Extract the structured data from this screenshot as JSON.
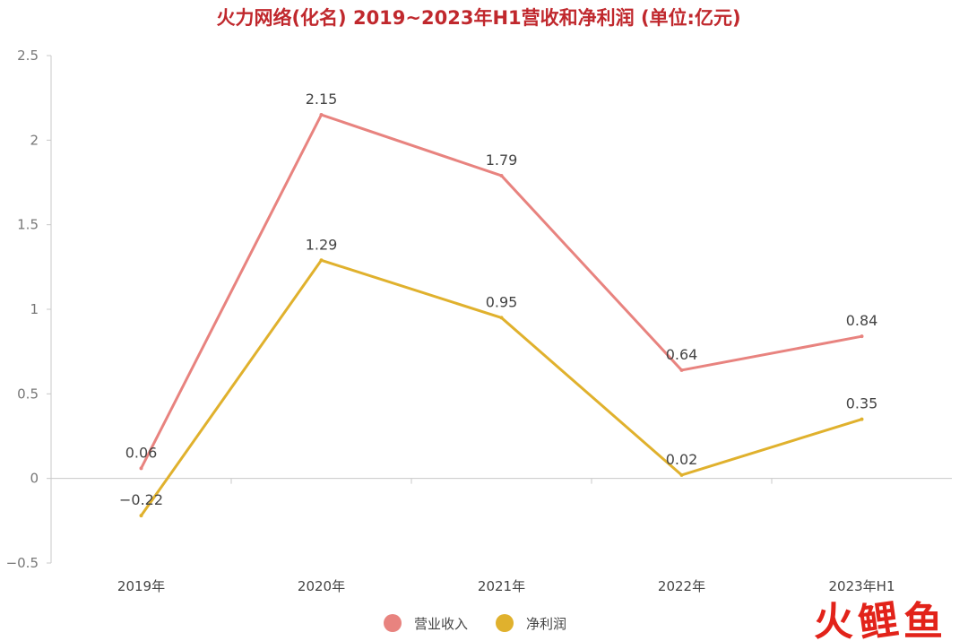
{
  "chart_data": {
    "type": "line",
    "title": "火力网络(化名) 2019~2023年H1营收和净利润 (单位:亿元)",
    "categories": [
      "2019年",
      "2020年",
      "2021年",
      "2022年",
      "2023年H1"
    ],
    "ylim": [
      -0.5,
      2.5
    ],
    "yticks": [
      "2.5",
      "2",
      "1.5",
      "1",
      "0.5",
      "0",
      "−0.5"
    ],
    "ytick_values": [
      2.5,
      2,
      1.5,
      1,
      0.5,
      0,
      -0.5
    ],
    "grid": false,
    "legend_position": "bottom",
    "series": [
      {
        "name": "营业收入",
        "color": "#e8837f",
        "values": [
          0.06,
          2.15,
          1.79,
          0.64,
          0.84
        ],
        "labels": [
          "0.06",
          "2.15",
          "1.79",
          "0.64",
          "0.84"
        ]
      },
      {
        "name": "净利润",
        "color": "#e0b12d",
        "values": [
          -0.22,
          1.29,
          0.95,
          0.02,
          0.35
        ],
        "labels": [
          "−0.22",
          "1.29",
          "0.95",
          "0.02",
          "0.35"
        ]
      }
    ]
  },
  "watermark": {
    "chars": [
      "火",
      "鲤",
      "鱼"
    ],
    "colors": [
      "#e2231a",
      "#e2231a",
      "#e2231a"
    ]
  }
}
